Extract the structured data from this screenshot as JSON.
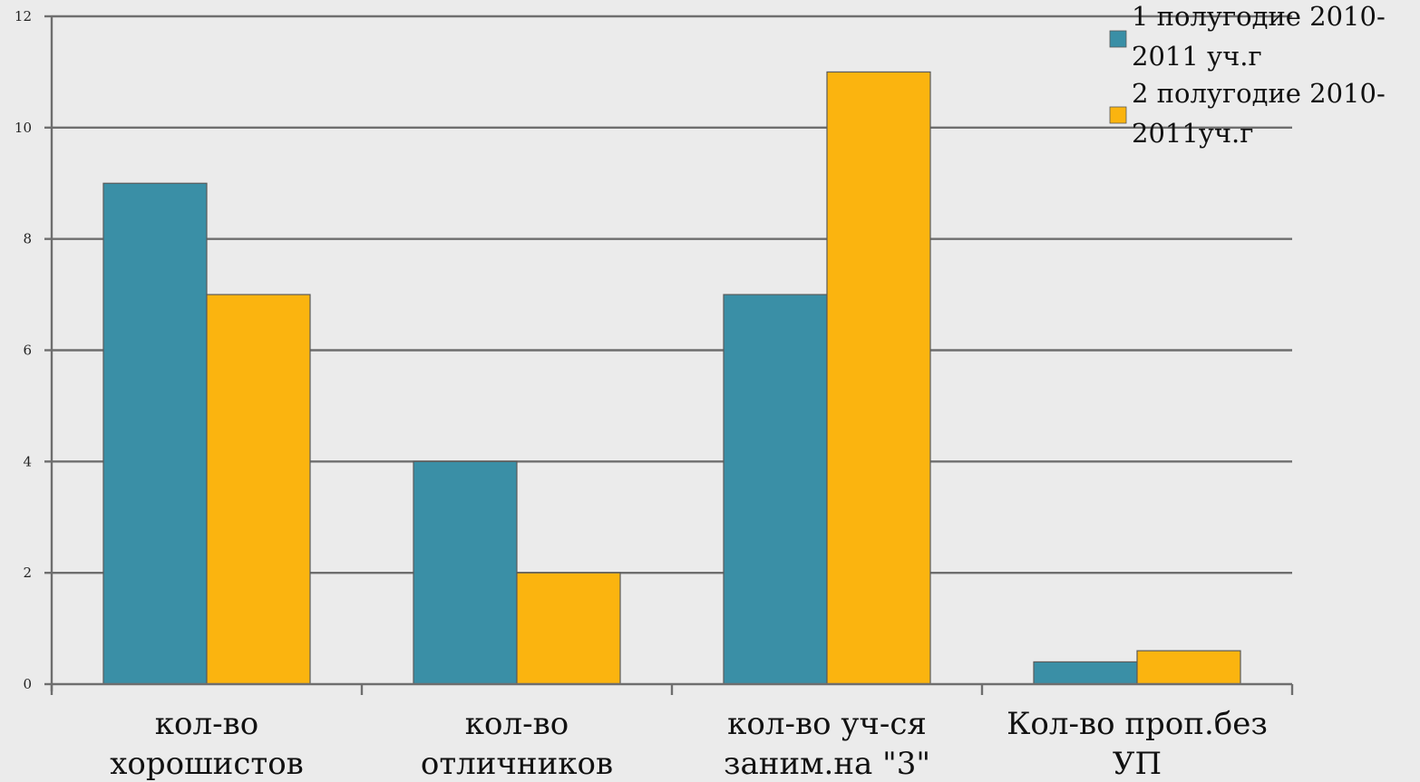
{
  "chart_data": {
    "type": "bar",
    "title": "",
    "xlabel": "",
    "ylabel": "",
    "ylim": [
      0,
      12
    ],
    "yticks": [
      0,
      2,
      4,
      6,
      8,
      10,
      12
    ],
    "grid": true,
    "legend_position": "top-right",
    "categories": [
      [
        "кол-во",
        "хорошистов"
      ],
      [
        "кол-во",
        "отличников"
      ],
      [
        "кол-во уч-ся",
        "заним.на \"3\""
      ],
      [
        "Кол-во проп.без",
        "УП"
      ]
    ],
    "series": [
      {
        "name": "1 полугодие 2010-2011 уч.г",
        "legend_lines": [
          "1 полугодие 2010-",
          "2011 уч.г"
        ],
        "color": "#3a8fa6",
        "values": [
          9,
          4,
          7,
          0.4
        ]
      },
      {
        "name": "2 полугодие 2010-2011уч.г",
        "legend_lines": [
          "2 полугодие 2010-",
          "2011уч.г"
        ],
        "color": "#fbb40f",
        "values": [
          7,
          2,
          11,
          0.6
        ]
      }
    ]
  }
}
